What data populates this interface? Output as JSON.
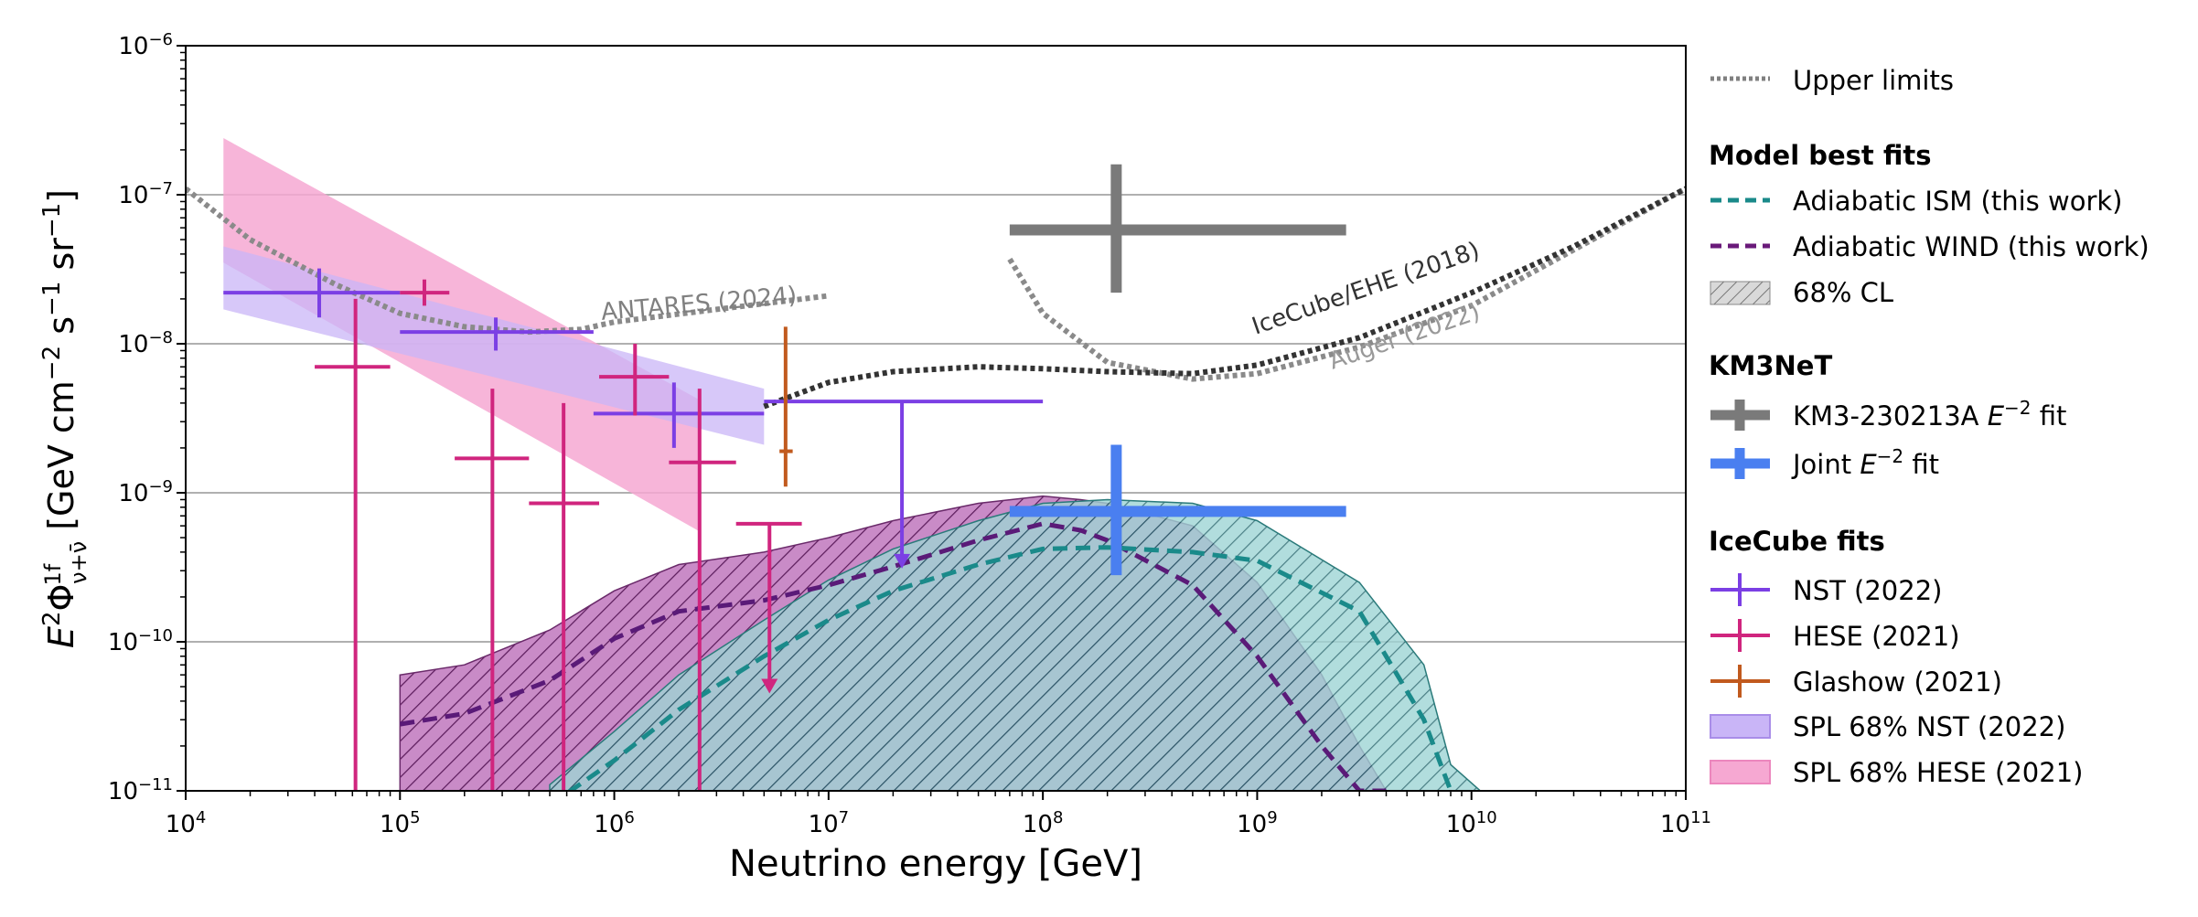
{
  "chart_data": {
    "type": "line",
    "xlabel": "Neutrino energy [GeV]",
    "ylabel_parts": {
      "pre": "E",
      "sup1": "2",
      "phi": "Φ",
      "sup2": "1f",
      "sub": "ν+ν̄",
      "unit": " [GeV cm",
      "e1": "−2",
      "s": " s",
      "e2": "−1",
      "sr": " sr",
      "e3": "−1",
      "close": "]"
    },
    "x_scale": "log",
    "y_scale": "log",
    "xlim": [
      10000,
      100000000000
    ],
    "ylim": [
      1e-11,
      1e-06
    ],
    "x_ticks": [
      {
        "base": "10",
        "exp": "4"
      },
      {
        "base": "10",
        "exp": "5"
      },
      {
        "base": "10",
        "exp": "6"
      },
      {
        "base": "10",
        "exp": "7"
      },
      {
        "base": "10",
        "exp": "8"
      },
      {
        "base": "10",
        "exp": "9"
      },
      {
        "base": "10",
        "exp": "10"
      },
      {
        "base": "10",
        "exp": "11"
      }
    ],
    "y_ticks": [
      {
        "base": "10",
        "exp": "−11"
      },
      {
        "base": "10",
        "exp": "−10"
      },
      {
        "base": "10",
        "exp": "−9"
      },
      {
        "base": "10",
        "exp": "−8"
      },
      {
        "base": "10",
        "exp": "−7"
      },
      {
        "base": "10",
        "exp": "−6"
      }
    ],
    "gridlines_y": [
      1e-10,
      1e-09,
      1e-08,
      1e-07
    ],
    "colors": {
      "upper_limits": "#808080",
      "icecube_ehe": "#333333",
      "ism": "#1a8a8a",
      "wind": "#5a1a78",
      "km3": "#7a7a7a",
      "joint": "#4a7ff0",
      "nst": "#7b3fe4",
      "hese": "#d0257e",
      "glashow": "#c15a1e",
      "spl_nst": "#c9b5f7",
      "spl_hese": "#f6a8d2",
      "ism_band": "#9ed4d4",
      "wind_band": "#c98bc7"
    },
    "upper_limits": [
      {
        "label": "ANTARES (2024)",
        "x": [
          10000,
          20000,
          50000,
          100000,
          200000,
          400000,
          700000,
          1000000,
          3000000,
          10000000
        ],
        "y": [
          1.1e-07,
          5e-08,
          2.5e-08,
          1.6e-08,
          1.3e-08,
          1.2e-08,
          1.25e-08,
          1.4e-08,
          1.7e-08,
          2.1e-08
        ]
      },
      {
        "label": "Auger (2022)",
        "x": [
          70000000,
          100000000,
          200000000,
          500000000,
          1000000000,
          3000000000,
          10000000000,
          100000000000
        ],
        "y": [
          3.7e-08,
          1.6e-08,
          7.5e-09,
          5.8e-09,
          6.3e-09,
          9.5e-09,
          1.8e-08,
          1.1e-07
        ]
      },
      {
        "label": "IceCube/EHE (2018)",
        "x": [
          5000000,
          10000000,
          20000000,
          50000000,
          100000000,
          200000000,
          500000000,
          1000000000,
          3000000000,
          10000000000,
          30000000000,
          100000000000
        ],
        "y": [
          3.8e-09,
          5.5e-09,
          6.5e-09,
          7e-09,
          6.8e-09,
          6.5e-09,
          6.3e-09,
          7.2e-09,
          1.1e-08,
          2.2e-08,
          4.5e-08,
          1.1e-07
        ]
      }
    ],
    "models": [
      {
        "label": "Adiabatic ISM (this work)",
        "x": [
          500000,
          1000000,
          2000000,
          5000000,
          10000000,
          20000000,
          50000000,
          100000000,
          200000000,
          500000000,
          1000000000,
          3000000000,
          6000000000,
          8000000000
        ],
        "y": [
          8e-12,
          1.6e-11,
          3.5e-11,
          8e-11,
          1.4e-10,
          2.2e-10,
          3.3e-10,
          4.2e-10,
          4.3e-10,
          4e-10,
          3.5e-10,
          1.6e-10,
          3e-11,
          1e-11
        ],
        "band_upper": [
          1.1e-11,
          2.5e-11,
          6e-11,
          1.4e-10,
          2.6e-10,
          4.2e-10,
          6.5e-10,
          8.5e-10,
          9e-10,
          8.5e-10,
          6.5e-10,
          2.5e-10,
          7e-11,
          1.5e-11
        ],
        "band_lower": [
          1e-11,
          1e-11,
          1e-11,
          1e-11,
          1e-11,
          1e-11,
          1e-11,
          1e-11,
          1e-11,
          1e-11,
          1e-11,
          1e-11,
          1e-11,
          1e-11
        ],
        "band_x_end": 11000000000
      },
      {
        "label": "Adiabatic WIND (this work)",
        "x": [
          100000,
          200000,
          500000,
          1000000,
          2000000,
          5000000,
          10000000,
          20000000,
          50000000,
          100000000,
          150000000,
          200000000,
          500000000,
          1000000000,
          2000000000,
          3000000000,
          4000000000
        ],
        "y": [
          2.8e-11,
          3.3e-11,
          5.5e-11,
          1.05e-10,
          1.6e-10,
          1.9e-10,
          2.4e-10,
          3.2e-10,
          4.8e-10,
          6.2e-10,
          5.6e-10,
          4.8e-10,
          2.4e-10,
          8e-11,
          2e-11,
          1e-11,
          1e-11
        ],
        "band_upper": [
          6e-11,
          7e-11,
          1.2e-10,
          2.2e-10,
          3.3e-10,
          4e-10,
          5e-10,
          6.5e-10,
          8.5e-10,
          9.5e-10,
          9e-10,
          8.5e-10,
          6e-10,
          2.5e-10,
          6e-11,
          2e-11,
          1e-11
        ],
        "band_lower": [
          1e-11,
          1e-11,
          1e-11,
          1e-11,
          1e-11,
          1e-11,
          1e-11,
          1e-11,
          1e-11,
          1e-11,
          1e-11,
          1e-11,
          1e-11,
          1e-11,
          1e-11,
          1e-11,
          1e-11
        ]
      }
    ],
    "spl_bands": [
      {
        "label": "SPL 68% NST (2022)",
        "x": [
          15000,
          5000000
        ],
        "upper": [
          4.5e-08,
          5e-09
        ],
        "lower": [
          1.7e-08,
          2.1e-09
        ]
      },
      {
        "label": "SPL 68% HESE (2021)",
        "x": [
          15000,
          2500000
        ],
        "upper": [
          2.4e-07,
          4.2e-09
        ],
        "lower": [
          3.5e-08,
          5.5e-10
        ]
      }
    ],
    "km3_point": {
      "label": "KM3-230213A E−2 fit",
      "x": 220000000,
      "xmin": 70000000,
      "xmax": 2600000000,
      "y": 5.8e-08,
      "ymin": 2.2e-08,
      "ymax": 1.6e-07
    },
    "joint_point": {
      "label": "Joint E−2 fit",
      "x": 220000000,
      "xmin": 70000000,
      "xmax": 2600000000,
      "y": 7.5e-10,
      "ymin": 2.8e-10,
      "ymax": 2.1e-09
    },
    "nst_points": [
      {
        "x": 42000,
        "xmin": 15000,
        "xmax": 100000,
        "y": 2.2e-08,
        "ymin": 1.5e-08,
        "ymax": 3.2e-08
      },
      {
        "x": 280000,
        "xmin": 100000,
        "xmax": 800000,
        "y": 1.2e-08,
        "ymin": 9e-09,
        "ymax": 1.5e-08
      },
      {
        "x": 1900000,
        "xmin": 800000,
        "xmax": 5000000,
        "y": 3.4e-09,
        "ymin": 2e-09,
        "ymax": 5.5e-09
      },
      {
        "x": 22000000,
        "xmin": 5000000,
        "xmax": 100000000,
        "y": 4.1e-09,
        "ul": true,
        "arrow_to": 3.1e-10
      }
    ],
    "hese_points": [
      {
        "x": 130000,
        "xmin": 100000,
        "xmax": 170000,
        "y": 2.2e-08,
        "ymin": 1.8e-08,
        "ymax": 2.7e-08
      },
      {
        "x": 62000,
        "xmin": 40000,
        "xmax": 90000,
        "y": 7e-09,
        "ymin": 1e-11,
        "ymax": 2e-08
      },
      {
        "x": 270000,
        "xmin": 180000,
        "xmax": 400000,
        "y": 1.7e-09,
        "ymin": 1e-11,
        "ymax": 5e-09
      },
      {
        "x": 580000,
        "xmin": 400000,
        "xmax": 850000,
        "y": 8.5e-10,
        "ymin": 1e-11,
        "ymax": 4e-09
      },
      {
        "x": 1250000,
        "xmin": 850000,
        "xmax": 1800000,
        "y": 6e-09,
        "ymin": 3.3e-09,
        "ymax": 1e-08
      },
      {
        "x": 2500000,
        "xmin": 1800000,
        "xmax": 3700000,
        "y": 1.6e-09,
        "ymin": 1e-11,
        "ymax": 5e-09
      },
      {
        "x": 5300000,
        "xmin": 3700000,
        "xmax": 7500000,
        "y": 6.2e-10,
        "ul": true,
        "arrow_to": 4.5e-11
      }
    ],
    "glashow_point": {
      "x": 6300000,
      "xmin": 5900000,
      "xmax": 6800000,
      "y": 1.9e-09,
      "ymin": 1.1e-09,
      "ymax": 1.3e-08
    },
    "annotations": [
      {
        "text": "ANTARES (2024)",
        "x": 2500000,
        "y": 1.65e-08,
        "angle": -5,
        "color": "#808080"
      },
      {
        "text": "IceCube/EHE (2018)",
        "x": 3300000000,
        "y": 2.1e-08,
        "angle": -19,
        "color": "#333333"
      },
      {
        "text": "Auger (2022)",
        "x": 5000000000,
        "y": 1e-08,
        "angle": -19,
        "color": "#999999"
      }
    ],
    "legend": {
      "placement": "right",
      "upper_limits_label": "Upper limits",
      "groups": [
        {
          "title": "Model best fits",
          "entries": [
            {
              "label": "Adiabatic ISM (this work)",
              "style": "dashed",
              "color": "#1a8a8a"
            },
            {
              "label": "Adiabatic WIND (this work)",
              "style": "dashed",
              "color": "#6a1a7a"
            },
            {
              "label": "68% CL",
              "style": "hatch",
              "color": "#b0b0b0"
            }
          ]
        },
        {
          "title": "KM3NeT",
          "entries": [
            {
              "label": "KM3-230213A E−2 fit",
              "pre": "KM3-230213A ",
              "e": "E",
              "sup": "−2",
              "post": " fit",
              "style": "errbar-thick",
              "color": "#7a7a7a"
            },
            {
              "label": "Joint E−2 fit",
              "pre": "Joint ",
              "e": "E",
              "sup": "−2",
              "post": " fit",
              "style": "errbar-thick",
              "color": "#4a7ff0"
            }
          ]
        },
        {
          "title": "IceCube fits",
          "entries": [
            {
              "label": "NST (2022)",
              "style": "errbar",
              "color": "#7b3fe4"
            },
            {
              "label": "HESE (2021)",
              "style": "errbar",
              "color": "#d0257e"
            },
            {
              "label": "Glashow (2021)",
              "style": "errbar",
              "color": "#c15a1e"
            },
            {
              "label": "SPL 68% NST (2022)",
              "style": "patch",
              "color": "#c9b5f7",
              "edge": "#a98de8"
            },
            {
              "label": "SPL 68% HESE (2021)",
              "style": "patch",
              "color": "#f6a8d2",
              "edge": "#ec86bd"
            }
          ]
        }
      ]
    }
  }
}
